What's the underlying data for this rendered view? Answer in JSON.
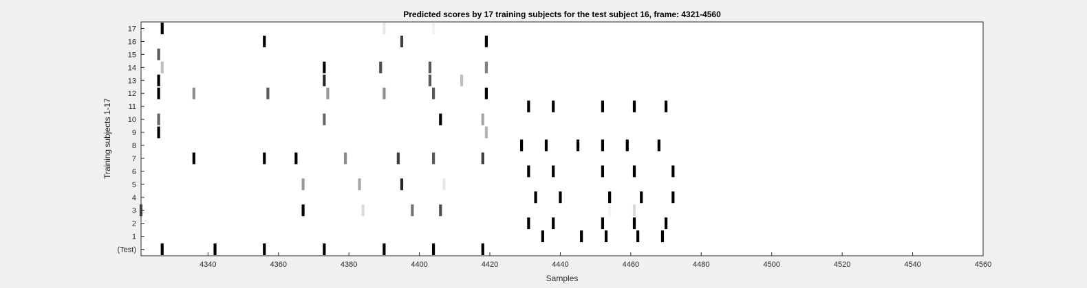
{
  "chart_data": {
    "type": "heatmap",
    "title": "Predicted scores by 17 training subjects for the test subject 16, frame: 4321-4560",
    "xlabel": "Samples",
    "ylabel": "Training subjects 1-17",
    "xlim": [
      4321,
      4560
    ],
    "x_ticks": [
      "4340",
      "4360",
      "4380",
      "4400",
      "4420",
      "4440",
      "4460",
      "4480",
      "4500",
      "4520",
      "4540",
      "4560"
    ],
    "y_rows": [
      "(Test)",
      "1",
      "2",
      "3",
      "4",
      "5",
      "6",
      "7",
      "8",
      "9",
      "10",
      "11",
      "12",
      "13",
      "14",
      "15",
      "16",
      "17"
    ],
    "colormap": "grayscale (white = 0, black = 1)",
    "grid": false,
    "marks": [
      {
        "row": "(Test)",
        "x": 4327,
        "v": 1.0
      },
      {
        "row": "(Test)",
        "x": 4342,
        "v": 1.0
      },
      {
        "row": "(Test)",
        "x": 4356,
        "v": 1.0
      },
      {
        "row": "(Test)",
        "x": 4373,
        "v": 1.0
      },
      {
        "row": "(Test)",
        "x": 4390,
        "v": 1.0
      },
      {
        "row": "(Test)",
        "x": 4404,
        "v": 1.0
      },
      {
        "row": "(Test)",
        "x": 4418,
        "v": 1.0
      },
      {
        "row": "1",
        "x": 4435,
        "v": 1.0
      },
      {
        "row": "1",
        "x": 4446,
        "v": 1.0
      },
      {
        "row": "1",
        "x": 4453,
        "v": 1.0
      },
      {
        "row": "1",
        "x": 4462,
        "v": 1.0
      },
      {
        "row": "1",
        "x": 4469,
        "v": 1.0
      },
      {
        "row": "2",
        "x": 4431,
        "v": 1.0
      },
      {
        "row": "2",
        "x": 4438,
        "v": 1.0
      },
      {
        "row": "2",
        "x": 4452,
        "v": 1.0
      },
      {
        "row": "2",
        "x": 4461,
        "v": 1.0
      },
      {
        "row": "2",
        "x": 4470,
        "v": 1.0
      },
      {
        "row": "3",
        "x": 4321,
        "v": 0.7
      },
      {
        "row": "3",
        "x": 4367,
        "v": 1.0
      },
      {
        "row": "3",
        "x": 4384,
        "v": 0.15
      },
      {
        "row": "3",
        "x": 4398,
        "v": 0.55
      },
      {
        "row": "3",
        "x": 4406,
        "v": 0.7
      },
      {
        "row": "3",
        "x": 4454,
        "v": 0.05
      },
      {
        "row": "3",
        "x": 4461,
        "v": 0.15
      },
      {
        "row": "4",
        "x": 4433,
        "v": 1.0
      },
      {
        "row": "4",
        "x": 4440,
        "v": 1.0
      },
      {
        "row": "4",
        "x": 4454,
        "v": 1.0
      },
      {
        "row": "4",
        "x": 4463,
        "v": 1.0
      },
      {
        "row": "4",
        "x": 4472,
        "v": 1.0
      },
      {
        "row": "5",
        "x": 4367,
        "v": 0.4
      },
      {
        "row": "5",
        "x": 4383,
        "v": 0.35
      },
      {
        "row": "5",
        "x": 4395,
        "v": 0.85
      },
      {
        "row": "5",
        "x": 4407,
        "v": 0.1
      },
      {
        "row": "6",
        "x": 4431,
        "v": 1.0
      },
      {
        "row": "6",
        "x": 4438,
        "v": 1.0
      },
      {
        "row": "6",
        "x": 4452,
        "v": 1.0
      },
      {
        "row": "6",
        "x": 4461,
        "v": 1.0
      },
      {
        "row": "6",
        "x": 4472,
        "v": 1.0
      },
      {
        "row": "7",
        "x": 4336,
        "v": 1.0
      },
      {
        "row": "7",
        "x": 4356,
        "v": 1.0
      },
      {
        "row": "7",
        "x": 4365,
        "v": 1.0
      },
      {
        "row": "7",
        "x": 4379,
        "v": 0.45
      },
      {
        "row": "7",
        "x": 4394,
        "v": 0.75
      },
      {
        "row": "7",
        "x": 4404,
        "v": 0.65
      },
      {
        "row": "7",
        "x": 4418,
        "v": 0.75
      },
      {
        "row": "8",
        "x": 4429,
        "v": 1.0
      },
      {
        "row": "8",
        "x": 4436,
        "v": 1.0
      },
      {
        "row": "8",
        "x": 4445,
        "v": 1.0
      },
      {
        "row": "8",
        "x": 4452,
        "v": 1.0
      },
      {
        "row": "8",
        "x": 4459,
        "v": 1.0
      },
      {
        "row": "8",
        "x": 4468,
        "v": 1.0
      },
      {
        "row": "9",
        "x": 4326,
        "v": 1.0
      },
      {
        "row": "9",
        "x": 4419,
        "v": 0.3
      },
      {
        "row": "10",
        "x": 4326,
        "v": 0.6
      },
      {
        "row": "10",
        "x": 4373,
        "v": 0.6
      },
      {
        "row": "10",
        "x": 4406,
        "v": 1.0
      },
      {
        "row": "10",
        "x": 4418,
        "v": 0.35
      },
      {
        "row": "11",
        "x": 4431,
        "v": 1.0
      },
      {
        "row": "11",
        "x": 4438,
        "v": 1.0
      },
      {
        "row": "11",
        "x": 4452,
        "v": 1.0
      },
      {
        "row": "11",
        "x": 4461,
        "v": 1.0
      },
      {
        "row": "11",
        "x": 4470,
        "v": 1.0
      },
      {
        "row": "12",
        "x": 4326,
        "v": 1.0
      },
      {
        "row": "12",
        "x": 4336,
        "v": 0.45
      },
      {
        "row": "12",
        "x": 4357,
        "v": 0.65
      },
      {
        "row": "12",
        "x": 4374,
        "v": 0.4
      },
      {
        "row": "12",
        "x": 4390,
        "v": 0.45
      },
      {
        "row": "12",
        "x": 4404,
        "v": 0.65
      },
      {
        "row": "12",
        "x": 4419,
        "v": 1.0
      },
      {
        "row": "13",
        "x": 4326,
        "v": 1.0
      },
      {
        "row": "13",
        "x": 4373,
        "v": 0.85
      },
      {
        "row": "13",
        "x": 4403,
        "v": 0.65
      },
      {
        "row": "13",
        "x": 4412,
        "v": 0.25
      },
      {
        "row": "14",
        "x": 4327,
        "v": 0.25
      },
      {
        "row": "14",
        "x": 4373,
        "v": 1.0
      },
      {
        "row": "14",
        "x": 4389,
        "v": 0.7
      },
      {
        "row": "14",
        "x": 4403,
        "v": 0.65
      },
      {
        "row": "14",
        "x": 4419,
        "v": 0.5
      },
      {
        "row": "15",
        "x": 4326,
        "v": 0.65
      },
      {
        "row": "16",
        "x": 4356,
        "v": 1.0
      },
      {
        "row": "16",
        "x": 4395,
        "v": 0.75
      },
      {
        "row": "16",
        "x": 4419,
        "v": 1.0
      },
      {
        "row": "17",
        "x": 4327,
        "v": 1.0
      },
      {
        "row": "17",
        "x": 4390,
        "v": 0.1
      },
      {
        "row": "17",
        "x": 4404,
        "v": 0.05
      }
    ]
  }
}
